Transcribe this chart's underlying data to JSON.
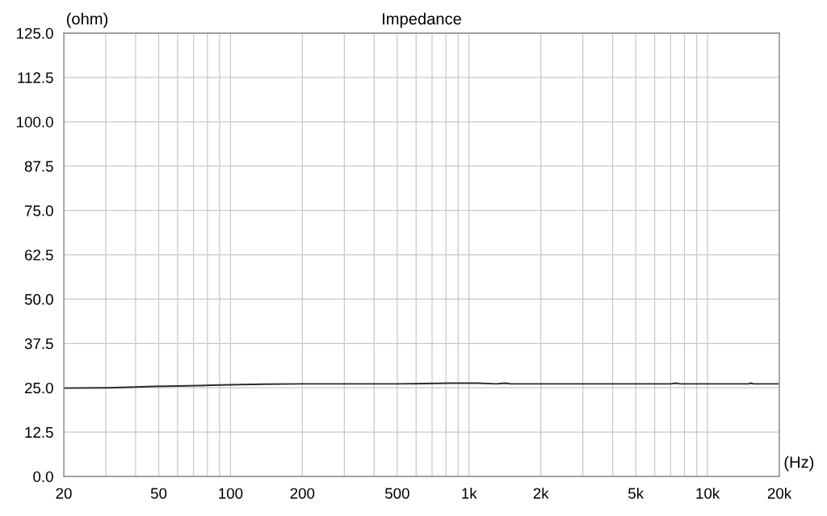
{
  "chart_data": {
    "type": "line",
    "title": "Impedance",
    "xlabel": "(Hz)",
    "ylabel": "(ohm)",
    "log": "x",
    "grid": true,
    "marker": "none",
    "line_style": "solid",
    "xlim": [
      20,
      20000
    ],
    "ylim": [
      0,
      125
    ],
    "xticks": [
      20,
      {
        "value": 30,
        "label": null
      },
      {
        "value": 40,
        "label": null
      },
      50,
      {
        "value": 60,
        "label": null
      },
      {
        "value": 70,
        "label": null
      },
      {
        "value": 80,
        "label": null
      },
      {
        "value": 90,
        "label": null
      },
      100,
      200,
      {
        "value": 300,
        "label": null
      },
      {
        "value": 400,
        "label": null
      },
      500,
      {
        "value": 600,
        "label": null
      },
      {
        "value": 700,
        "label": null
      },
      {
        "value": 800,
        "label": null
      },
      {
        "value": 900,
        "label": null
      },
      {
        "value": 1000,
        "label": "1k"
      },
      {
        "value": 2000,
        "label": "2k"
      },
      {
        "value": 3000,
        "label": null
      },
      {
        "value": 4000,
        "label": null
      },
      {
        "value": 5000,
        "label": "5k"
      },
      {
        "value": 6000,
        "label": null
      },
      {
        "value": 7000,
        "label": null
      },
      {
        "value": 8000,
        "label": null
      },
      {
        "value": 9000,
        "label": null
      },
      {
        "value": 10000,
        "label": "10k"
      },
      {
        "value": 20000,
        "label": "20k"
      }
    ],
    "yticks": [
      {
        "value": 0,
        "label": "0.0"
      },
      12.5,
      {
        "value": 25,
        "label": "25.0"
      },
      37.5,
      {
        "value": 50,
        "label": "50.0"
      },
      62.5,
      {
        "value": 75,
        "label": "75.0"
      },
      87.5,
      {
        "value": 100,
        "label": "100.0"
      },
      112.5,
      {
        "value": 125,
        "label": "125.0"
      }
    ],
    "x": [
      20,
      31,
      40,
      48,
      60,
      74,
      91,
      110,
      139,
      198,
      500,
      838,
      1092,
      1300,
      1413,
      1500,
      3000,
      7000,
      7320,
      7700,
      14800,
      15200,
      15600,
      20000
    ],
    "series": [
      {
        "color": "#2b2b2b",
        "values": [
          24.9,
          25.0,
          25.2,
          25.4,
          25.5,
          25.6,
          25.8,
          25.9,
          26.0,
          26.1,
          26.1,
          26.3,
          26.3,
          26.1,
          26.3,
          26.1,
          26.1,
          26.1,
          26.3,
          26.1,
          26.1,
          26.3,
          26.1,
          26.1
        ]
      }
    ]
  }
}
